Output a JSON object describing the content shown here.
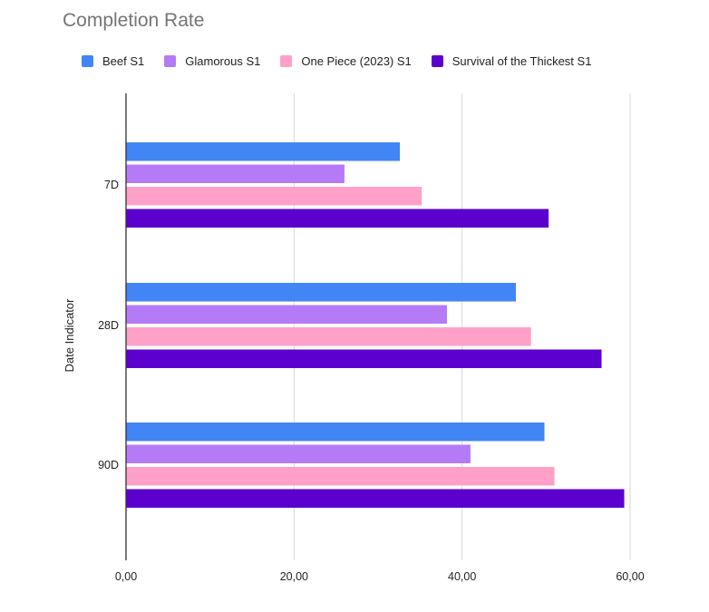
{
  "chart_data": {
    "type": "bar",
    "orientation": "horizontal",
    "title": "Completion Rate",
    "ylabel": "Date Indicator",
    "xlabel": "",
    "categories": [
      "7D",
      "28D",
      "90D"
    ],
    "series": [
      {
        "name": "Beef S1",
        "color": "#4285F4",
        "values": [
          32.6,
          46.4,
          49.8
        ]
      },
      {
        "name": "Glamorous S1",
        "color": "#B57BF7",
        "values": [
          26.0,
          38.2,
          41.0
        ]
      },
      {
        "name": "One Piece (2023) S1",
        "color": "#FFA0C8",
        "values": [
          35.2,
          48.2,
          51.0
        ]
      },
      {
        "name": "Survival of the Thickest S1",
        "color": "#5B00CE",
        "values": [
          50.3,
          56.6,
          59.3
        ]
      }
    ],
    "xlim": [
      0,
      60
    ],
    "xticks": [
      "0,00",
      "20,00",
      "40,00",
      "60,00"
    ],
    "grid": true,
    "legend_position": "top"
  }
}
